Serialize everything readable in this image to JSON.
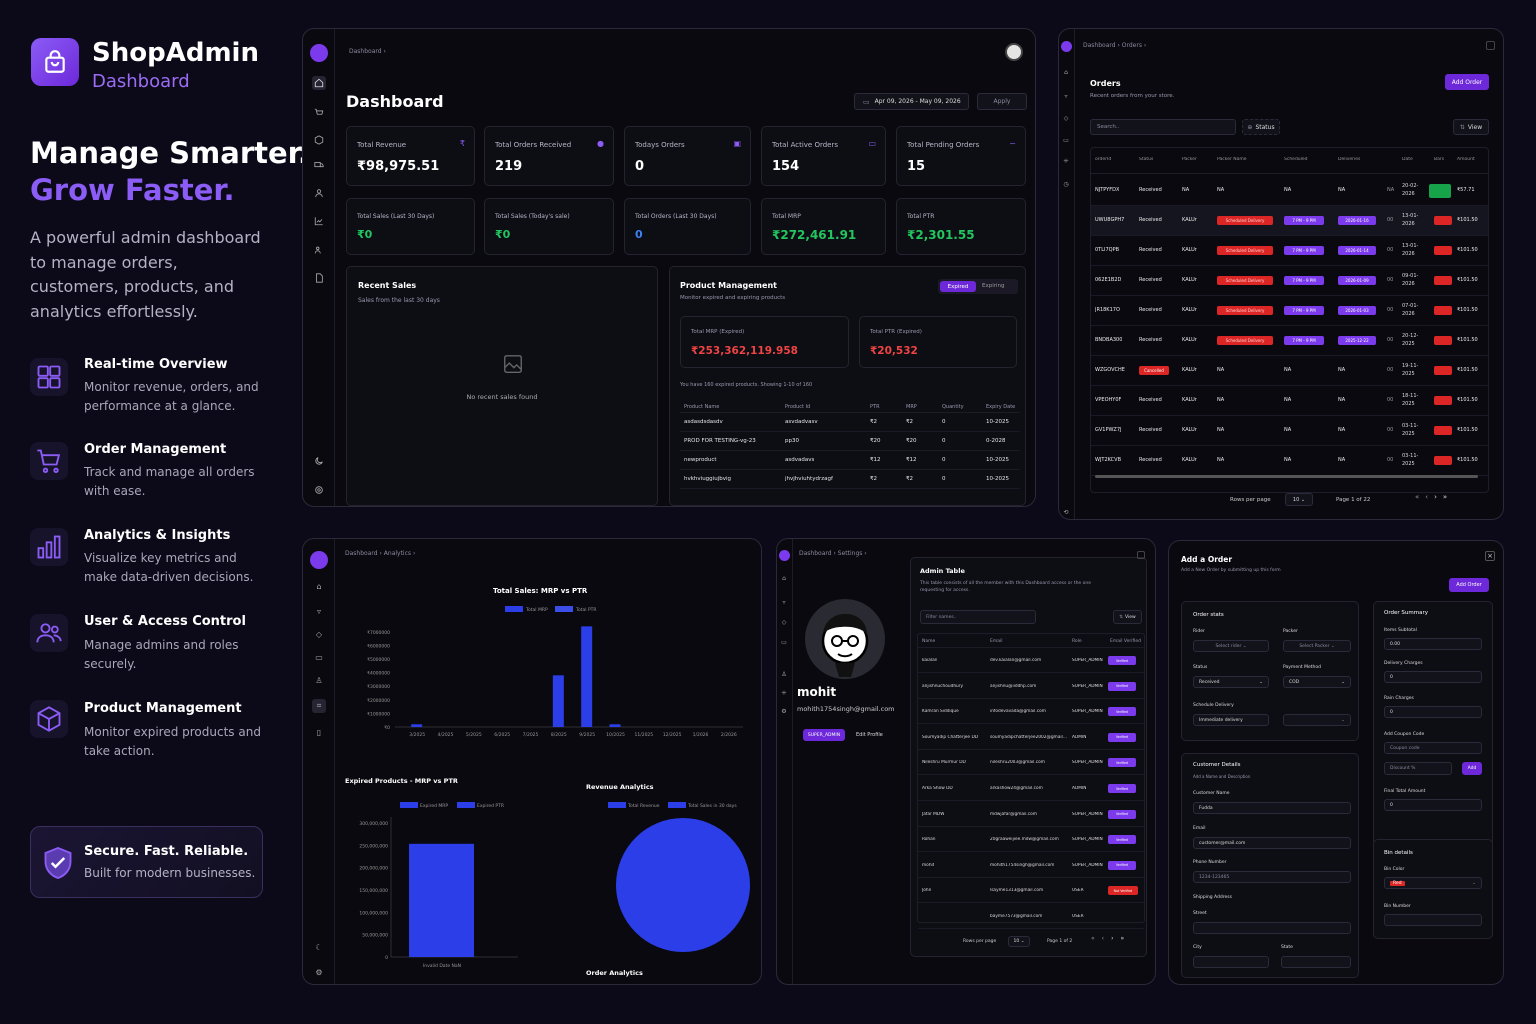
{
  "brand": {
    "name": "ShopAdmin",
    "sub": "Dashboard"
  },
  "hero": {
    "line1": "Manage Smarter.",
    "line2": "Grow Faster.",
    "desc": "A powerful admin dashboard to manage orders, customers, products, and analytics effortlessly."
  },
  "features": [
    {
      "icon": "layout-grid-icon",
      "title": "Real-time Overview",
      "desc": "Monitor revenue, orders, and performance at a glance."
    },
    {
      "icon": "cart-icon",
      "title": "Order Management",
      "desc": "Track and manage all orders with ease."
    },
    {
      "icon": "bar-chart-icon",
      "title": "Analytics & Insights",
      "desc": "Visualize key metrics and make data-driven decisions."
    },
    {
      "icon": "users-icon",
      "title": "User & Access Control",
      "desc": "Manage admins and roles securely."
    },
    {
      "icon": "box-icon",
      "title": "Product Management",
      "desc": "Monitor expired products and take action."
    }
  ],
  "secure": {
    "title": "Secure. Fast. Reliable.",
    "desc": "Built for modern businesses."
  },
  "dash": {
    "crumb": "Dashboard ›",
    "title": "Dashboard",
    "date": "Apr 09, 2026 - May 09, 2026",
    "apply": "Apply",
    "stats": [
      {
        "label": "Total Revenue",
        "value": "₹98,975.51"
      },
      {
        "label": "Total Orders Received",
        "value": "219"
      },
      {
        "label": "Todays Orders",
        "value": "0"
      },
      {
        "label": "Total Active Orders",
        "value": "154"
      },
      {
        "label": "Total Pending Orders",
        "value": "15"
      }
    ],
    "stats2": [
      {
        "label": "Total Sales (Last 30 Days)",
        "value": "₹0"
      },
      {
        "label": "Total Sales (Today's sale)",
        "value": "₹0"
      },
      {
        "label": "Total Orders (Last 30 Days)",
        "value": "0"
      },
      {
        "label": "Total MRP",
        "value": "₹272,461.91"
      },
      {
        "label": "Total PTR",
        "value": "₹2,301.55"
      }
    ],
    "recent": {
      "title": "Recent Sales",
      "sub": "Sales from the last 30 days",
      "empty": "No recent sales found"
    },
    "pm": {
      "title": "Product Management",
      "sub": "Monitor expired and expiring products",
      "tab1": "Expired",
      "tab2": "Expiring",
      "mrp_label": "Total MRP (Expired)",
      "mrp": "₹253,362,119.958",
      "ptr_label": "Total PTR (Expired)",
      "ptr": "₹20,532",
      "note": "You have 160 expired products. Showing 1-10 of 160",
      "cols": [
        "Product Name",
        "Product Id",
        "PTR",
        "MRP",
        "Quantity",
        "Expiry Date"
      ],
      "rows": [
        [
          "asdasdsdasdv",
          "asvdadvasv",
          "₹2",
          "₹2",
          "0",
          "10-2025"
        ],
        [
          "PROD FOR TESTING-vg-23",
          "pp30",
          "₹20",
          "₹20",
          "0",
          "0-2028"
        ],
        [
          "newproduct",
          "asdvadavs",
          "₹12",
          "₹12",
          "0",
          "10-2025"
        ],
        [
          "hvkhviuggiujbvig",
          "jhvjhviuhtydrzagf",
          "₹2",
          "₹2",
          "0",
          "10-2025"
        ]
      ]
    }
  },
  "orders": {
    "crumb1": "Dashboard",
    "crumb2": "Orders",
    "title": "Orders",
    "sub": "Recent orders from your store.",
    "add": "Add Order",
    "search": "Search..",
    "status": "Status",
    "view": "View",
    "cols": [
      "orderId",
      "Status",
      "Packer",
      "Packer Name",
      "Scheduled",
      "Deliveries",
      "",
      "Date",
      "Bars",
      "Amount"
    ],
    "rows": [
      {
        "id": "NJTPYFDX",
        "st": "Received",
        "p": "NA",
        "pn": "NA",
        "sch": "NA",
        "dl": "NA",
        "x": "NA",
        "date": "20-02-2026",
        "amt": "₹57.71",
        "tags": false
      },
      {
        "id": "UWU8GPH7",
        "st": "Received",
        "p": "KALUr",
        "pn": "Scheduled Delivery",
        "sch": "7 PM - 9 PM",
        "dl": "2026-01-16",
        "x": "00",
        "date": "13-01-2026",
        "amt": "₹101.50",
        "tags": true
      },
      {
        "id": "0TLI7QPB",
        "st": "Received",
        "p": "KALUr",
        "pn": "Scheduled Delivery",
        "sch": "7 PM - 9 PM",
        "dl": "2026-01-14",
        "x": "00",
        "date": "13-01-2026",
        "amt": "₹101.50",
        "tags": true
      },
      {
        "id": "062E1B2D",
        "st": "Received",
        "p": "KALUr",
        "pn": "Scheduled Delivery",
        "sch": "7 PM - 9 PM",
        "dl": "2026-01-09",
        "x": "00",
        "date": "09-01-2026",
        "amt": "₹101.50",
        "tags": true
      },
      {
        "id": "JR18K17O",
        "st": "Received",
        "p": "KALUr",
        "pn": "Scheduled Delivery",
        "sch": "7 PM - 9 PM",
        "dl": "2026-01-03",
        "x": "00",
        "date": "07-01-2026",
        "amt": "₹101.50",
        "tags": true
      },
      {
        "id": "BNDBA300",
        "st": "Received",
        "p": "KALUr",
        "pn": "Scheduled Delivery",
        "sch": "7 PM - 9 PM",
        "dl": "2025-12-22",
        "x": "00",
        "date": "20-12-2025",
        "amt": "₹101.50",
        "tags": true
      },
      {
        "id": "WZGOVCHE",
        "st": "Cancelled",
        "p": "KALUr",
        "pn": "NA",
        "sch": "NA",
        "dl": "NA",
        "x": "00",
        "date": "19-11-2025",
        "amt": "₹101.50",
        "tags": false
      },
      {
        "id": "VPEOHY0F",
        "st": "Received",
        "p": "KALUr",
        "pn": "NA",
        "sch": "NA",
        "dl": "NA",
        "x": "00",
        "date": "18-11-2025",
        "amt": "₹101.50",
        "tags": false
      },
      {
        "id": "GV1PWZ7J",
        "st": "Received",
        "p": "KALUr",
        "pn": "NA",
        "sch": "NA",
        "dl": "NA",
        "x": "00",
        "date": "03-11-2025",
        "amt": "₹101.50",
        "tags": false
      },
      {
        "id": "WJT2KCVB",
        "st": "Received",
        "p": "KALUr",
        "pn": "NA",
        "sch": "NA",
        "dl": "NA",
        "x": "00",
        "date": "03-11-2025",
        "amt": "₹101.50",
        "tags": false
      }
    ],
    "rpp": "Rows per page",
    "rppv": "10",
    "page": "Page 1 of 22"
  },
  "analytics": {
    "crumb1": "Dashboard",
    "crumb2": "Analytics",
    "c1_title": "Total Sales: MRP vs PTR",
    "c1_leg": [
      "Total MRP",
      "Total PTR"
    ],
    "c2_title": "Expired Products - MRP vs PTR",
    "c2_leg": [
      "Expired MRP",
      "Expired PTR"
    ],
    "c2_x": "Invalid Date NaN",
    "c3_title": "Revenue Analytics",
    "c3_leg": [
      "Total Revenue",
      "Total Sales in 30 days"
    ],
    "c4_title": "Order Analytics"
  },
  "chart_data": [
    {
      "type": "bar",
      "title": "Total Sales: MRP vs PTR",
      "categories": [
        "3/2025",
        "4/2025",
        "5/2025",
        "6/2025",
        "7/2025",
        "8/2025",
        "9/2025",
        "10/2025",
        "11/2025",
        "12/2025",
        "1/2026",
        "2/2026"
      ],
      "series": [
        {
          "name": "Total MRP",
          "values": [
            200000,
            0,
            0,
            0,
            0,
            3800000,
            7400000,
            200000,
            0,
            0,
            0,
            0
          ]
        },
        {
          "name": "Total PTR",
          "values": [
            0,
            0,
            0,
            0,
            0,
            0,
            0,
            0,
            0,
            0,
            0,
            0
          ]
        }
      ],
      "yticks": [
        "₹0",
        "₹1000000",
        "₹2000000",
        "₹3000000",
        "₹4000000",
        "₹5000000",
        "₹6000000",
        "₹7000000"
      ],
      "ylim": [
        0,
        7500000
      ]
    },
    {
      "type": "bar",
      "title": "Expired Products - MRP vs PTR",
      "categories": [
        "Invalid Date NaN"
      ],
      "series": [
        {
          "name": "Expired MRP",
          "values": [
            253362120
          ]
        },
        {
          "name": "Expired PTR",
          "values": [
            20532
          ]
        }
      ],
      "yticks": [
        "0",
        "50,000,000",
        "100,000,000",
        "150,000,000",
        "200,000,000",
        "250,000,000",
        "300,000,000"
      ],
      "ylim": [
        0,
        300000000
      ]
    },
    {
      "type": "pie",
      "title": "Revenue Analytics",
      "labels": [
        "Total Revenue",
        "Total Sales in 30 days"
      ],
      "values": [
        98975.51,
        0
      ]
    }
  ],
  "admins": {
    "crumb1": "Dashboard",
    "crumb2": "Settings",
    "name": "mohit",
    "email": "mohith1754singh@gmail.com",
    "role": "SUPER_ADMIN",
    "edit": "Edit Profile",
    "title": "Admin Table",
    "sub": "This table consists of all the member with this Dashboard access or the one requesting for access.",
    "filter": "Filter names..",
    "view": "View",
    "cols": [
      "Name",
      "Email",
      "Role",
      "Email Verified"
    ],
    "rows": [
      [
        "kaialan",
        "dev.kaialan@gmail.com",
        "SUPER_ADMIN",
        "Verified"
      ],
      [
        "anjishnuchoudhury",
        "anjishnu@iiddhp.com",
        "SUPER_ADMIN",
        "Verified"
      ],
      [
        "Kamran Siddique",
        "infodevavada@gmail.com",
        "SUPER_ADMIN",
        "Verified"
      ],
      [
        "Soumyadip Chatterjee DD",
        "soumyadipchatterjee2002@gmail.com",
        "ADMIN",
        "Verified"
      ],
      [
        "Nileshru Murmur DD",
        "nileshru2003@gmail.com",
        "SUPER_ADMIN",
        "Verified"
      ],
      [
        "Arka Show DD",
        "arkashow24@gmail.com",
        "ADMIN",
        "Verified"
      ],
      [
        "Jafar MDW",
        "mdwjafar@gmail.com",
        "SUPER_ADMIN",
        "Verified"
      ],
      [
        "Rohan",
        "20graaweijiee.mdw@gmail.com",
        "SUPER_ADMIN",
        "Verified"
      ],
      [
        "mohit",
        "mohith1754singh@gmail.com",
        "SUPER_ADMIN",
        "Verified"
      ],
      [
        "John",
        "lsayme1313@gmail.com",
        "USER",
        "Not Verified"
      ],
      [
        "",
        "bayme7573@gmail.com",
        "USER",
        ""
      ]
    ],
    "rpp": "Rows per page",
    "rppv": "10",
    "page": "Page 1 of 2"
  },
  "addorder": {
    "title": "Add a Order",
    "sub": "Add a New Order by submitting up this form",
    "btn": "Add Order",
    "stats": "Order stats",
    "rider": "Rider",
    "rider_ph": "Select rider",
    "packer": "Packer",
    "packer_ph": "Select Packer",
    "status": "Status",
    "status_v": "Received",
    "pay": "Payment Method",
    "pay_v": "COD",
    "sched": "Schedule Delivery",
    "sched_v": "Immediate delivery",
    "cust": "Customer Details",
    "cust_sub": "Add a Name and Description",
    "cname": "Customer Name",
    "cname_v": "Fudda",
    "email": "Email",
    "email_v": "customer@mail.com",
    "phone": "Phone Number",
    "phone_v": "1234-123465",
    "ship": "Shipping Address",
    "street": "Street",
    "city": "City",
    "state": "State",
    "summary": "Order Summary",
    "items": "Items Subtotal",
    "items_v": "0.00",
    "delivery": "Delivery Charges",
    "delivery_v": "0",
    "rain": "Rain Charges",
    "rain_v": "0",
    "coupon": "Add Coupon Code",
    "coupon_ph": "Coupon code",
    "discount_ph": "Discount %",
    "add": "Add",
    "final": "Final Total Amount",
    "final_v": "0",
    "bin": "Bin details",
    "bincolor": "Bin Color",
    "bincolor_v": "Red",
    "binnum": "Bin Number"
  },
  "colors": {
    "accent": "#7c3aed",
    "green": "#22c55e",
    "red": "#ef4444",
    "blue": "#2b3ee8",
    "bg": "#0c0a18"
  }
}
